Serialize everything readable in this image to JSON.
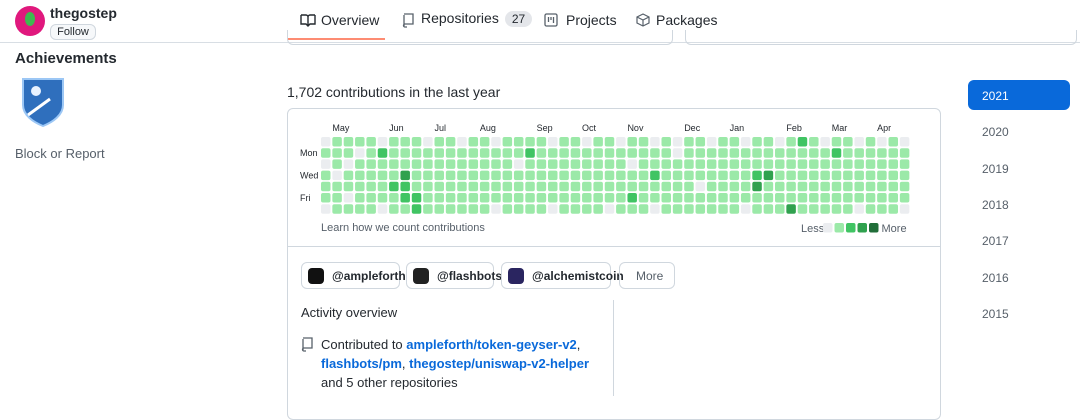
{
  "header": {
    "username": "thegostep",
    "follow": "Follow"
  },
  "tabs": [
    {
      "label": "Overview"
    },
    {
      "label": "Repositories",
      "count": 27
    },
    {
      "label": "Projects"
    },
    {
      "label": "Packages"
    }
  ],
  "sidebar": {
    "achievements": "Achievements",
    "block": "Block or Report"
  },
  "contributions": {
    "summary": "1,702 contributions in the last year",
    "months": [
      {
        "label": "May",
        "week": 1
      },
      {
        "label": "Jun",
        "week": 6
      },
      {
        "label": "Jul",
        "week": 10
      },
      {
        "label": "Aug",
        "week": 14
      },
      {
        "label": "Sep",
        "week": 19
      },
      {
        "label": "Oct",
        "week": 23
      },
      {
        "label": "Nov",
        "week": 27
      },
      {
        "label": "Dec",
        "week": 32
      },
      {
        "label": "Jan",
        "week": 36
      },
      {
        "label": "Feb",
        "week": 41
      },
      {
        "label": "Mar",
        "week": 45
      },
      {
        "label": "Apr",
        "week": 49
      }
    ],
    "days": [
      null,
      "Mon",
      null,
      "Wed",
      null,
      "Fri",
      null
    ],
    "weeks": [
      [
        0,
        1,
        0,
        1,
        1,
        1,
        0
      ],
      [
        1,
        1,
        1,
        0,
        1,
        1,
        1
      ],
      [
        1,
        1,
        0,
        1,
        1,
        0,
        1
      ],
      [
        1,
        0,
        1,
        1,
        1,
        1,
        1
      ],
      [
        1,
        1,
        1,
        1,
        1,
        1,
        1
      ],
      [
        0,
        2,
        1,
        1,
        1,
        1,
        0
      ],
      [
        1,
        1,
        1,
        1,
        2,
        1,
        1
      ],
      [
        1,
        1,
        1,
        3,
        2,
        2,
        1
      ],
      [
        1,
        1,
        1,
        1,
        1,
        2,
        2
      ],
      [
        0,
        1,
        1,
        1,
        1,
        1,
        1
      ],
      [
        1,
        1,
        1,
        1,
        1,
        1,
        1
      ],
      [
        1,
        1,
        1,
        1,
        1,
        1,
        1
      ],
      [
        0,
        1,
        1,
        1,
        1,
        1,
        1
      ],
      [
        1,
        1,
        1,
        1,
        1,
        1,
        1
      ],
      [
        1,
        1,
        1,
        1,
        1,
        1,
        1
      ],
      [
        0,
        1,
        1,
        1,
        1,
        1,
        0
      ],
      [
        1,
        1,
        1,
        1,
        1,
        1,
        1
      ],
      [
        1,
        1,
        0,
        1,
        1,
        1,
        1
      ],
      [
        1,
        2,
        1,
        1,
        1,
        1,
        1
      ],
      [
        1,
        1,
        1,
        1,
        1,
        1,
        1
      ],
      [
        0,
        1,
        1,
        1,
        1,
        1,
        0
      ],
      [
        1,
        1,
        1,
        1,
        1,
        1,
        1
      ],
      [
        1,
        1,
        1,
        1,
        1,
        1,
        1
      ],
      [
        0,
        1,
        1,
        1,
        1,
        1,
        1
      ],
      [
        1,
        1,
        1,
        1,
        1,
        1,
        1
      ],
      [
        1,
        1,
        1,
        1,
        1,
        1,
        0
      ],
      [
        0,
        1,
        1,
        1,
        1,
        1,
        1
      ],
      [
        1,
        1,
        0,
        1,
        1,
        2,
        1
      ],
      [
        1,
        1,
        1,
        1,
        1,
        1,
        1
      ],
      [
        0,
        1,
        1,
        2,
        1,
        1,
        0
      ],
      [
        1,
        1,
        1,
        1,
        1,
        1,
        1
      ],
      [
        0,
        0,
        1,
        1,
        1,
        1,
        1
      ],
      [
        1,
        1,
        1,
        1,
        1,
        1,
        1
      ],
      [
        1,
        1,
        1,
        1,
        0,
        1,
        1
      ],
      [
        0,
        1,
        1,
        1,
        1,
        1,
        1
      ],
      [
        1,
        1,
        1,
        1,
        1,
        1,
        1
      ],
      [
        1,
        1,
        1,
        1,
        1,
        1,
        1
      ],
      [
        0,
        1,
        1,
        1,
        1,
        1,
        0
      ],
      [
        1,
        1,
        1,
        2,
        3,
        1,
        1
      ],
      [
        1,
        1,
        1,
        3,
        1,
        1,
        1
      ],
      [
        0,
        1,
        1,
        1,
        1,
        1,
        1
      ],
      [
        1,
        1,
        1,
        1,
        1,
        1,
        3
      ],
      [
        2,
        1,
        1,
        1,
        1,
        1,
        1
      ],
      [
        1,
        1,
        1,
        1,
        1,
        1,
        1
      ],
      [
        0,
        1,
        1,
        1,
        1,
        1,
        1
      ],
      [
        1,
        2,
        1,
        1,
        1,
        1,
        1
      ],
      [
        1,
        1,
        1,
        1,
        1,
        1,
        1
      ],
      [
        0,
        1,
        1,
        1,
        1,
        1,
        0
      ],
      [
        1,
        1,
        1,
        1,
        1,
        1,
        1
      ],
      [
        0,
        1,
        1,
        1,
        1,
        1,
        1
      ],
      [
        1,
        1,
        1,
        1,
        1,
        1,
        1
      ],
      [
        0,
        1,
        1,
        1,
        1,
        1,
        0
      ]
    ],
    "colors": [
      "#ebedf0",
      "#9be9a8",
      "#40c463",
      "#30a14e",
      "#216e39"
    ],
    "learn": "Learn how we count contributions",
    "less": "Less",
    "more": "More"
  },
  "orgs": [
    "@ampleforth",
    "@flashbots",
    "@alchemistcoin"
  ],
  "orgs_more": "More",
  "activity": {
    "title": "Activity overview",
    "prefix": "Contributed to",
    "repos": [
      "ampleforth/token-geyser-v2",
      "flashbots/pm",
      "thegostep/uniswap-v2-helper"
    ],
    "separator": ",",
    "suffix": "and 5 other repositories"
  },
  "years": [
    "2021",
    "2020",
    "2019",
    "2018",
    "2017",
    "2016",
    "2015"
  ],
  "selected_year": 0
}
